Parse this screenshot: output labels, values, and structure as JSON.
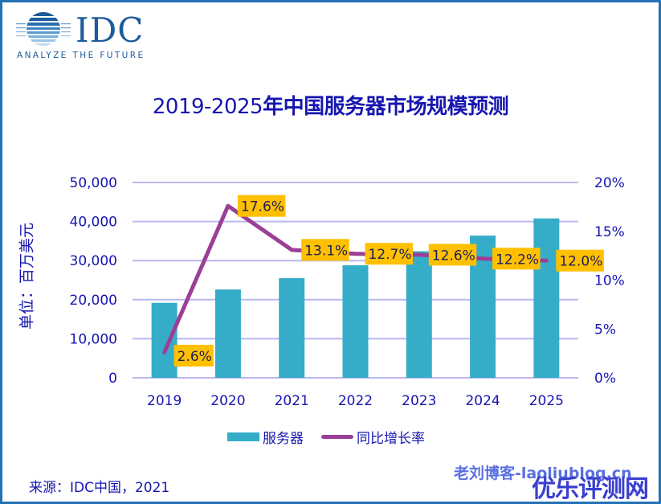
{
  "logo": {
    "name": "IDC",
    "tagline": "ANALYZE THE FUTURE"
  },
  "title": {
    "years": "2019-2025",
    "text": "年中国服务器市场规模预测"
  },
  "left_axis_unit": "单位：百万美元",
  "source": "来源：IDC中国，2021",
  "watermarks": [
    "老刘博客-laoliublog.cn",
    "优乐评测网"
  ],
  "colors": {
    "bar": "#35adc8",
    "line": "#9b3f96",
    "label_bg": "#ffc000",
    "text": "#1616b0",
    "grid": "#b8b8f0",
    "frame": "#2272b5"
  },
  "chart_data": {
    "type": "bar",
    "title": "2019-2025年中国服务器市场规模预测",
    "categories": [
      "2019",
      "2020",
      "2021",
      "2022",
      "2023",
      "2024",
      "2025"
    ],
    "series": [
      {
        "name": "服务器",
        "type": "bar",
        "axis": "left",
        "values": [
          19200,
          22600,
          25500,
          28800,
          32400,
          36400,
          40800
        ]
      },
      {
        "name": "同比增长率",
        "type": "line",
        "axis": "right",
        "values": [
          2.6,
          17.6,
          13.1,
          12.7,
          12.6,
          12.2,
          12.0
        ],
        "labels": [
          "2.6%",
          "17.6%",
          "13.1%",
          "12.7%",
          "12.6%",
          "12.2%",
          "12.0%"
        ]
      }
    ],
    "ylabel": "单位：百万美元",
    "ylim": [
      0,
      50000
    ],
    "yticks": [
      "0",
      "10,000",
      "20,000",
      "30,000",
      "40,000",
      "50,000"
    ],
    "y2lim": [
      0,
      20
    ],
    "y2ticks": [
      "0%",
      "5%",
      "10%",
      "15%",
      "20%"
    ],
    "grid": true,
    "legend": {
      "position": "bottom",
      "entries": [
        "服务器",
        "同比增长率"
      ]
    }
  }
}
